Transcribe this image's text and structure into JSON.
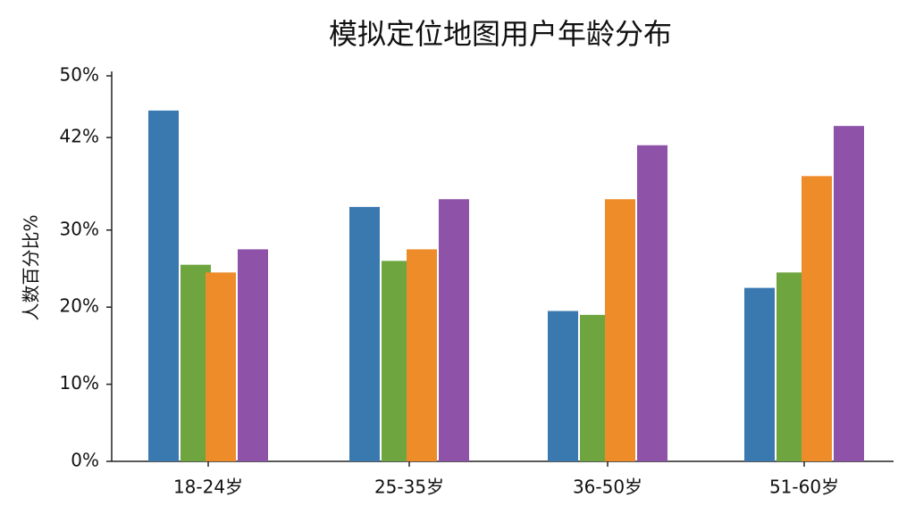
{
  "chart_data": {
    "type": "bar",
    "title": "模拟定位地图用户年龄分布",
    "y_label": "人数百分比%",
    "categories": [
      "18-24岁",
      "25-35岁",
      "36-50岁",
      "51-60岁"
    ],
    "series": [
      {
        "color": "#3a78b0",
        "values": [
          45.5,
          33,
          19.5,
          22.5
        ]
      },
      {
        "color": "#6fa53f",
        "values": [
          25.5,
          26,
          19,
          24.5
        ]
      },
      {
        "color": "#ee8c2a",
        "values": [
          24.5,
          27.5,
          34,
          37
        ]
      },
      {
        "color": "#8e52a8",
        "values": [
          27.5,
          34,
          41,
          43.5
        ]
      }
    ],
    "ylim": [
      0,
      50
    ],
    "yticks": [
      {
        "value": 0,
        "label": "0%"
      },
      {
        "value": 10,
        "label": "10%"
      },
      {
        "value": 20,
        "label": "20%"
      },
      {
        "value": 30,
        "label": "30%"
      },
      {
        "value": 42,
        "label": "42%"
      },
      {
        "value": 50,
        "label": "50%"
      }
    ]
  }
}
